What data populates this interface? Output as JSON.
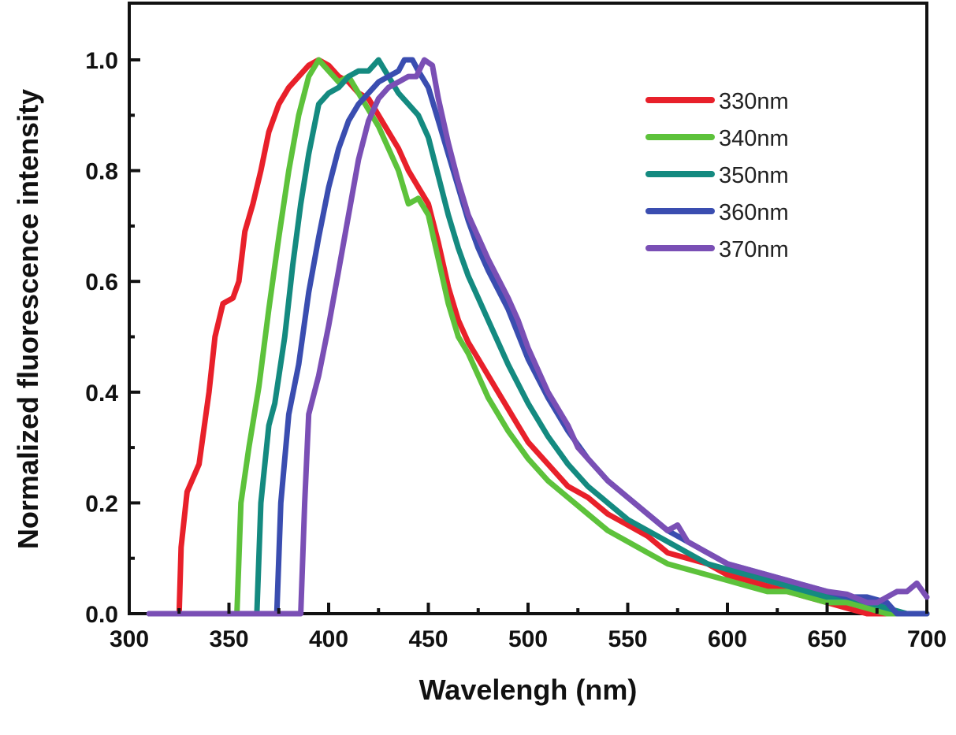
{
  "chart_data": {
    "type": "line",
    "title": "",
    "xlabel": "Wavelengh (nm)",
    "ylabel": "Normalized fluorescence intensity",
    "xlim": [
      300,
      700
    ],
    "ylim": [
      0,
      1.1
    ],
    "xticks": [
      300,
      350,
      400,
      450,
      500,
      550,
      600,
      650,
      700
    ],
    "xtick_labels": [
      "300",
      "350",
      "400",
      "450",
      "500",
      "550",
      "600",
      "650",
      "700"
    ],
    "yticks": [
      0.0,
      0.2,
      0.4,
      0.6,
      0.8,
      1.0
    ],
    "ytick_labels": [
      "0.0",
      "0.2",
      "0.4",
      "0.6",
      "0.8",
      "1.0"
    ],
    "grid": false,
    "legend_position": "top-right",
    "series": [
      {
        "name": "330nm",
        "color": "#e8202a",
        "x": [
          310,
          325,
          326,
          329,
          335,
          340,
          343,
          347,
          352,
          355,
          358,
          362,
          366,
          370,
          375,
          380,
          385,
          390,
          395,
          400,
          405,
          410,
          415,
          420,
          425,
          430,
          435,
          440,
          445,
          450,
          455,
          460,
          465,
          470,
          475,
          480,
          485,
          490,
          495,
          500,
          510,
          520,
          530,
          540,
          550,
          560,
          570,
          580,
          590,
          600,
          610,
          620,
          630,
          640,
          650,
          660,
          670,
          680,
          690,
          700
        ],
        "y": [
          0.0,
          0.0,
          0.12,
          0.22,
          0.27,
          0.4,
          0.5,
          0.56,
          0.57,
          0.6,
          0.69,
          0.74,
          0.8,
          0.87,
          0.92,
          0.95,
          0.97,
          0.99,
          1.0,
          0.99,
          0.97,
          0.96,
          0.94,
          0.93,
          0.9,
          0.87,
          0.84,
          0.8,
          0.77,
          0.74,
          0.67,
          0.59,
          0.53,
          0.49,
          0.46,
          0.43,
          0.4,
          0.37,
          0.34,
          0.31,
          0.27,
          0.23,
          0.21,
          0.18,
          0.16,
          0.14,
          0.11,
          0.1,
          0.09,
          0.07,
          0.06,
          0.05,
          0.04,
          0.03,
          0.02,
          0.01,
          0.0,
          0.0,
          0.0,
          0.0
        ]
      },
      {
        "name": "340nm",
        "color": "#5dc23b",
        "x": [
          310,
          354,
          356,
          360,
          365,
          370,
          375,
          380,
          385,
          390,
          395,
          400,
          405,
          410,
          415,
          420,
          425,
          430,
          435,
          440,
          445,
          450,
          455,
          460,
          465,
          470,
          475,
          480,
          490,
          500,
          510,
          520,
          530,
          540,
          550,
          560,
          570,
          580,
          590,
          600,
          610,
          620,
          630,
          640,
          650,
          660,
          670,
          680,
          690,
          700
        ],
        "y": [
          0.0,
          0.0,
          0.2,
          0.3,
          0.41,
          0.55,
          0.68,
          0.8,
          0.9,
          0.97,
          1.0,
          0.98,
          0.96,
          0.97,
          0.94,
          0.91,
          0.88,
          0.84,
          0.8,
          0.74,
          0.75,
          0.72,
          0.64,
          0.56,
          0.5,
          0.47,
          0.43,
          0.39,
          0.33,
          0.28,
          0.24,
          0.21,
          0.18,
          0.15,
          0.13,
          0.11,
          0.09,
          0.08,
          0.07,
          0.06,
          0.05,
          0.04,
          0.04,
          0.03,
          0.02,
          0.02,
          0.01,
          0.0,
          0.0,
          0.0
        ]
      },
      {
        "name": "350nm",
        "color": "#148a80",
        "x": [
          310,
          364,
          366,
          370,
          373,
          378,
          382,
          386,
          390,
          395,
          400,
          405,
          410,
          415,
          420,
          425,
          430,
          435,
          440,
          445,
          450,
          455,
          460,
          465,
          470,
          475,
          480,
          490,
          500,
          510,
          520,
          530,
          540,
          550,
          560,
          570,
          580,
          590,
          600,
          610,
          620,
          630,
          640,
          650,
          660,
          670,
          680,
          690,
          700
        ],
        "y": [
          0.0,
          0.0,
          0.2,
          0.34,
          0.38,
          0.5,
          0.63,
          0.74,
          0.83,
          0.92,
          0.94,
          0.95,
          0.97,
          0.98,
          0.98,
          1.0,
          0.97,
          0.94,
          0.92,
          0.9,
          0.86,
          0.79,
          0.72,
          0.66,
          0.61,
          0.57,
          0.53,
          0.45,
          0.38,
          0.32,
          0.27,
          0.23,
          0.2,
          0.17,
          0.15,
          0.13,
          0.11,
          0.09,
          0.08,
          0.07,
          0.06,
          0.05,
          0.04,
          0.03,
          0.03,
          0.02,
          0.01,
          0.0,
          0.0
        ]
      },
      {
        "name": "360nm",
        "color": "#3a4db0",
        "x": [
          310,
          374,
          376,
          380,
          385,
          390,
          395,
          400,
          405,
          410,
          415,
          420,
          425,
          430,
          435,
          438,
          442,
          445,
          450,
          455,
          460,
          465,
          470,
          475,
          480,
          490,
          500,
          510,
          520,
          530,
          540,
          550,
          560,
          570,
          580,
          590,
          600,
          610,
          620,
          630,
          640,
          650,
          660,
          670,
          680,
          685,
          690,
          700
        ],
        "y": [
          0.0,
          0.0,
          0.2,
          0.36,
          0.45,
          0.58,
          0.68,
          0.77,
          0.84,
          0.89,
          0.92,
          0.94,
          0.96,
          0.97,
          0.98,
          1.0,
          1.0,
          0.98,
          0.95,
          0.89,
          0.83,
          0.77,
          0.71,
          0.66,
          0.62,
          0.55,
          0.46,
          0.39,
          0.33,
          0.28,
          0.24,
          0.21,
          0.18,
          0.15,
          0.13,
          0.11,
          0.09,
          0.08,
          0.07,
          0.06,
          0.05,
          0.04,
          0.03,
          0.03,
          0.02,
          0.0,
          0.0,
          0.0
        ]
      },
      {
        "name": "370nm",
        "color": "#7a4fb5",
        "x": [
          310,
          386,
          388,
          390,
          395,
          400,
          405,
          410,
          415,
          420,
          425,
          430,
          435,
          440,
          444,
          448,
          452,
          455,
          460,
          465,
          470,
          475,
          480,
          490,
          495,
          500,
          510,
          520,
          525,
          530,
          540,
          550,
          560,
          570,
          575,
          580,
          590,
          600,
          610,
          620,
          630,
          640,
          650,
          660,
          670,
          675,
          680,
          685,
          690,
          695,
          700
        ],
        "y": [
          0.0,
          0.0,
          0.2,
          0.36,
          0.43,
          0.52,
          0.62,
          0.72,
          0.82,
          0.89,
          0.93,
          0.95,
          0.96,
          0.97,
          0.97,
          1.0,
          0.99,
          0.93,
          0.85,
          0.78,
          0.72,
          0.68,
          0.64,
          0.57,
          0.53,
          0.48,
          0.4,
          0.34,
          0.3,
          0.28,
          0.24,
          0.21,
          0.18,
          0.15,
          0.16,
          0.13,
          0.11,
          0.09,
          0.08,
          0.07,
          0.06,
          0.05,
          0.04,
          0.035,
          0.02,
          0.02,
          0.03,
          0.04,
          0.04,
          0.055,
          0.03
        ]
      }
    ]
  }
}
